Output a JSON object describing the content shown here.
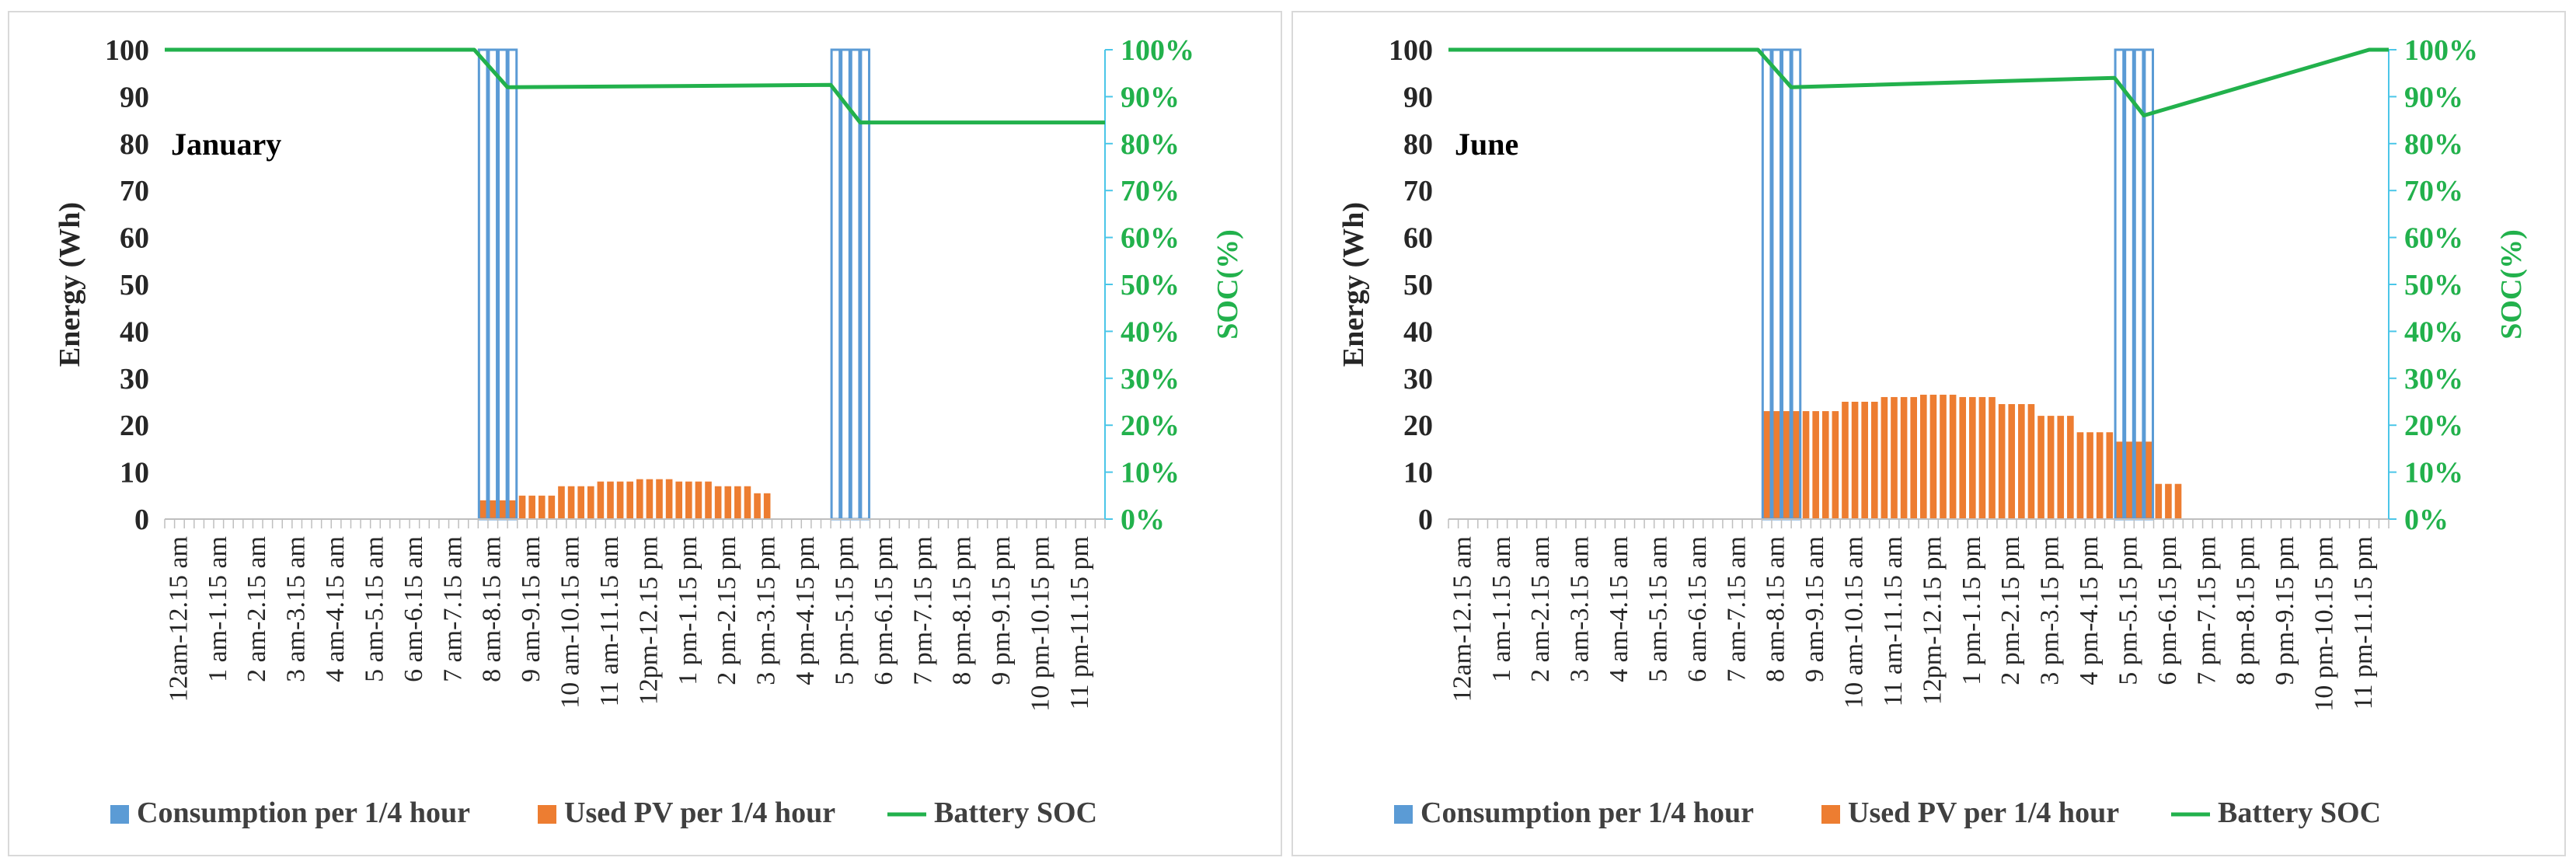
{
  "chart_data": [
    {
      "type": "bar",
      "title": "January",
      "ylabel": "Energy (Wh)",
      "y2label": "SOC(%)",
      "ylim": [
        0,
        100
      ],
      "y2lim": [
        0,
        100
      ],
      "yticks": [
        "0",
        "10",
        "20",
        "30",
        "40",
        "50",
        "60",
        "70",
        "80",
        "90",
        "100"
      ],
      "y2ticks": [
        "0%",
        "10%",
        "20%",
        "30%",
        "40%",
        "50%",
        "60%",
        "70%",
        "80%",
        "90%",
        "100%"
      ],
      "xtick_labels": [
        "12am-12.15 am",
        "1 am-1.15 am",
        "2 am-2.15 am",
        "3 am-3.15 am",
        "4 am-4.15 am",
        "5 am-5.15 am",
        "6 am-6.15 am",
        "7 am-7.15 am",
        "8 am-8.15 am",
        "9 am-9.15 am",
        "10 am-10.15 am",
        "11 am-11.15 am",
        "12pm-12.15 pm",
        "1 pm-1.15 pm",
        "2 pm-2.15 pm",
        "3 pm-3.15 pm",
        "4 pm-4.15 pm",
        "5 pm-5.15 pm",
        "6 pm-6.15 pm",
        "7 pm-7.15 pm",
        "8 pm-8.15 pm",
        "9 pm-9.15 pm",
        "10 pm-10.15 pm",
        "11 pm-11.15 pm"
      ],
      "consumption_hours": [
        8,
        17
      ],
      "consumption_per_quarter_wh": 100,
      "used_pv_per_quarter_wh": [
        0,
        0,
        0,
        0,
        0,
        0,
        0,
        0,
        4,
        5,
        7,
        8,
        8.5,
        8,
        7,
        5.5,
        0,
        0,
        0,
        0,
        0,
        0,
        0,
        0
      ],
      "pv_last_hour_quarters": 2,
      "battery_soc_points": [
        [
          0,
          100
        ],
        [
          7.9,
          100
        ],
        [
          8.75,
          92
        ],
        [
          17,
          92.5
        ],
        [
          17.75,
          84.5
        ],
        [
          24,
          84.5
        ]
      ],
      "legend": [
        "Consumption per 1/4 hour",
        "Used PV per 1/4 hour",
        "Battery SOC"
      ]
    },
    {
      "type": "bar",
      "title": "June",
      "ylabel": "Energy (Wh)",
      "y2label": "SOC(%)",
      "ylim": [
        0,
        100
      ],
      "y2lim": [
        0,
        100
      ],
      "yticks": [
        "0",
        "10",
        "20",
        "30",
        "40",
        "50",
        "60",
        "70",
        "80",
        "90",
        "100"
      ],
      "y2ticks": [
        "0%",
        "10%",
        "20%",
        "30%",
        "40%",
        "50%",
        "60%",
        "70%",
        "80%",
        "90%",
        "100%"
      ],
      "xtick_labels": [
        "12am-12.15 am",
        "1 am-1.15 am",
        "2 am-2.15 am",
        "3 am-3.15 am",
        "4 am-4.15 am",
        "5 am-5.15 am",
        "6 am-6.15 am",
        "7 am-7.15 am",
        "8 am-8.15 am",
        "9 am-9.15 am",
        "10 am-10.15 am",
        "11 am-11.15 am",
        "12pm-12.15 pm",
        "1 pm-1.15 pm",
        "2 pm-2.15 pm",
        "3 pm-3.15 pm",
        "4 pm-4.15 pm",
        "5 pm-5.15 pm",
        "6 pm-6.15 pm",
        "7 pm-7.15 pm",
        "8 pm-8.15 pm",
        "9 pm-9.15 pm",
        "10 pm-10.15 pm",
        "11 pm-11.15 pm"
      ],
      "consumption_hours": [
        8,
        17
      ],
      "consumption_per_quarter_wh": 100,
      "used_pv_per_quarter_wh": [
        0,
        0,
        0,
        0,
        0,
        0,
        0,
        0,
        23,
        23,
        25,
        26,
        26.5,
        26,
        24.5,
        22,
        18.5,
        16.5,
        7.5,
        0,
        0,
        0,
        0,
        0
      ],
      "pv_last_hour_quarters": 3,
      "battery_soc_points": [
        [
          0,
          100
        ],
        [
          7.9,
          100
        ],
        [
          8.75,
          92
        ],
        [
          17,
          94
        ],
        [
          17.75,
          86
        ],
        [
          23.5,
          100
        ],
        [
          24,
          100
        ]
      ],
      "legend": [
        "Consumption per 1/4 hour",
        "Used PV per 1/4 hour",
        "Battery SOC"
      ]
    }
  ],
  "colors": {
    "consumption": "#5b9bd5",
    "used_pv": "#ed7d31",
    "soc": "#22b14c",
    "secondary_axis": "#4bc6e8",
    "grid_axis": "#bfbfbf"
  }
}
